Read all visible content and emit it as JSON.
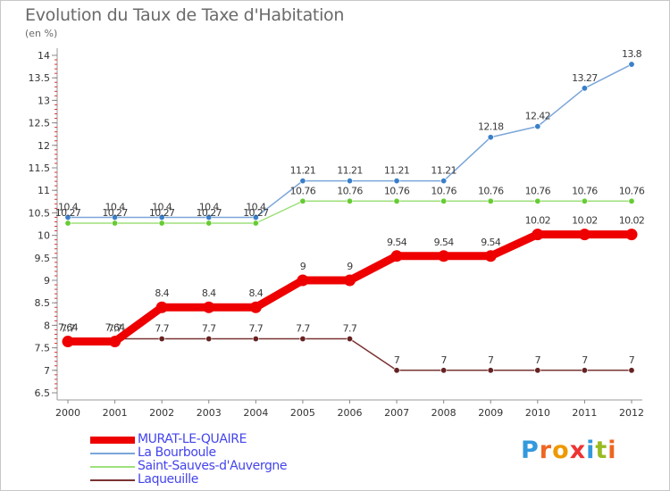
{
  "chart_data": {
    "type": "line",
    "title": "Evolution du Taux de Taxe d'Habitation",
    "subtitle": "(en %)",
    "xlabel": "",
    "ylabel": "",
    "x": [
      "2000",
      "2001",
      "2002",
      "2003",
      "2004",
      "2005",
      "2006",
      "2007",
      "2008",
      "2009",
      "2010",
      "2011",
      "2012"
    ],
    "ylim": [
      6.5,
      14
    ],
    "yticks": [
      "6.5",
      "7",
      "7.5",
      "8",
      "8.5",
      "9",
      "9.5",
      "10",
      "10.5",
      "11",
      "11.5",
      "12",
      "12.5",
      "13",
      "13.5",
      "14"
    ],
    "grid": false,
    "legend_position": "bottom-left",
    "series": [
      {
        "name": "MURAT-LE-QUAIRE",
        "color": "#ee0000",
        "values": [
          7.64,
          7.64,
          8.4,
          8.4,
          8.4,
          9,
          9,
          9.54,
          9.54,
          9.54,
          10.02,
          10.02,
          10.02
        ],
        "labels": [
          "7.64",
          "7.64",
          "8.4",
          "8.4",
          "8.4",
          "9",
          "9",
          "9.54",
          "9.54",
          "9.54",
          "10.02",
          "10.02",
          "10.02"
        ]
      },
      {
        "name": "La Bourboule",
        "color": "#7ba6d9",
        "marker_color": "#3a7fc9",
        "values": [
          10.4,
          10.4,
          10.4,
          10.4,
          10.4,
          11.21,
          11.21,
          11.21,
          11.21,
          12.18,
          12.42,
          13.27,
          13.8
        ],
        "labels": [
          "10.4",
          "10.4",
          "10.4",
          "10.4",
          "10.4",
          "11.21",
          "11.21",
          "11.21",
          "11.21",
          "12.18",
          "12.42",
          "13.27",
          "13.8"
        ]
      },
      {
        "name": "Saint-Sauves-d'Auvergne",
        "color": "#9ee07a",
        "marker_color": "#66cc33",
        "values": [
          10.27,
          10.27,
          10.27,
          10.27,
          10.27,
          10.76,
          10.76,
          10.76,
          10.76,
          10.76,
          10.76,
          10.76,
          10.76
        ],
        "labels": [
          "10.27",
          "10.27",
          "10.27",
          "10.27",
          "10.27",
          "10.76",
          "10.76",
          "10.76",
          "10.76",
          "10.76",
          "10.76",
          "10.76",
          "10.76"
        ]
      },
      {
        "name": "Laqueuille",
        "color": "#7a3333",
        "marker_color": "#662222",
        "values": [
          7.7,
          7.7,
          7.7,
          7.7,
          7.7,
          7.7,
          7.7,
          7,
          7,
          7,
          7,
          7,
          7
        ],
        "labels": [
          "7.7",
          "7.7",
          "7.7",
          "7.7",
          "7.7",
          "7.7",
          "7.7",
          "7",
          "7",
          "7",
          "7",
          "7",
          "7"
        ]
      }
    ]
  },
  "brand": {
    "letters": [
      "P",
      "r",
      "o",
      "x",
      "i",
      "t",
      "i"
    ],
    "colors": [
      "#3399dd",
      "#ee6622",
      "#ee9900",
      "#ee3333",
      "#3399dd",
      "#99bb22",
      "#ee6622"
    ]
  }
}
